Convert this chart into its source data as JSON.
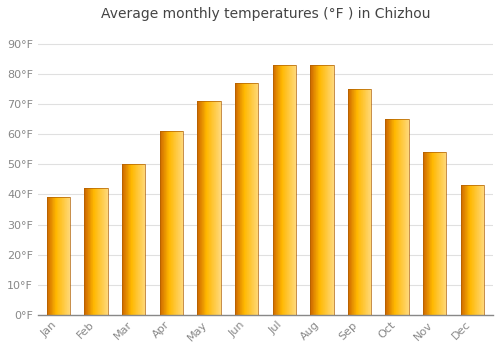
{
  "months": [
    "Jan",
    "Feb",
    "Mar",
    "Apr",
    "May",
    "Jun",
    "Jul",
    "Aug",
    "Sep",
    "Oct",
    "Nov",
    "Dec"
  ],
  "values": [
    39,
    42,
    50,
    61,
    71,
    77,
    83,
    83,
    75,
    65,
    54,
    43
  ],
  "bar_color_left": "#E07800",
  "bar_color_center": "#FFB800",
  "bar_color_right": "#FFD060",
  "title": "Average monthly temperatures (°F ) in Chizhou",
  "ylim": [
    0,
    95
  ],
  "yticks": [
    0,
    10,
    20,
    30,
    40,
    50,
    60,
    70,
    80,
    90
  ],
  "ytick_labels": [
    "0°F",
    "10°F",
    "20°F",
    "30°F",
    "40°F",
    "50°F",
    "60°F",
    "70°F",
    "80°F",
    "90°F"
  ],
  "background_color": "#ffffff",
  "grid_color": "#e0e0e0",
  "title_fontsize": 10,
  "tick_fontsize": 8,
  "tick_color": "#888888",
  "axis_color": "#888888",
  "bar_edge_color": "#b06000",
  "bar_edge_width": 0.5
}
